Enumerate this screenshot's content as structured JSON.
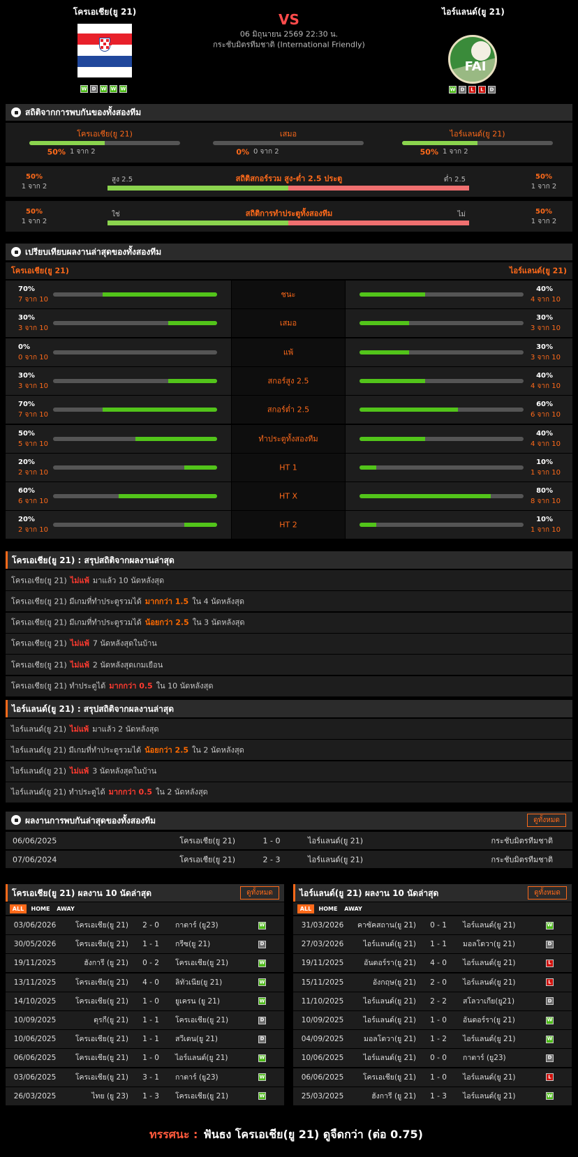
{
  "header": {
    "home": {
      "name": "โครเอเชีย(ยู 21)",
      "form": [
        "W",
        "D",
        "W",
        "W",
        "W"
      ]
    },
    "vs": "VS",
    "date": "06 มิถุนายน 2569 22:30 น.",
    "competition": "กระชับมิตรทีมชาติ (International Friendly)",
    "away": {
      "name": "ไอร์แลนด์(ยู 21)",
      "logo_text": "FAI",
      "form": [
        "W",
        "D",
        "L",
        "L",
        "D"
      ]
    }
  },
  "h2h_stats": {
    "title": "สถิติจากการพบกันของทั้งสองทีม",
    "results": [
      {
        "label": "โครเอเชีย(ยู 21)",
        "pct": {
          "value": 50,
          "label": "50%"
        },
        "count": "1 จาก 2"
      },
      {
        "label": "เสมอ",
        "pct": {
          "value": 0,
          "label": "0%"
        },
        "count": "0 จาก 2"
      },
      {
        "label": "ไอร์แลนด์(ยู 21)",
        "pct": {
          "value": 50,
          "label": "50%"
        },
        "count": "1 จาก 2"
      }
    ],
    "splits": [
      {
        "title": "สถิติสกอร์รวม สูง-ต่ำ 2.5 ประตู",
        "left_label": "สูง 2.5",
        "right_label": "ต่ำ 2.5",
        "left_pct": {
          "value": 50,
          "label": "50%"
        },
        "left_count": "1 จาก 2",
        "right_pct": {
          "value": 50,
          "label": "50%"
        },
        "right_count": "1 จาก 2"
      },
      {
        "title": "สถิติการทำประตูทั้งสองทีม",
        "left_label": "ใช่",
        "right_label": "ไม่",
        "left_pct": {
          "value": 50,
          "label": "50%"
        },
        "left_count": "1 จาก 2",
        "right_pct": {
          "value": 50,
          "label": "50%"
        },
        "right_count": "1 จาก 2"
      }
    ]
  },
  "form_compare": {
    "title": "เปรียบเทียบผลงานล่าสุดของทั้งสองทีม",
    "home_team": "โครเอเชีย(ยู 21)",
    "away_team": "ไอร์แลนด์(ยู 21)",
    "rows": [
      {
        "label": "ชนะ",
        "home_pct": {
          "value": 70,
          "label": "70%"
        },
        "home_count": "7 จาก 10",
        "away_pct": {
          "value": 40,
          "label": "40%"
        },
        "away_count": "4 จาก 10"
      },
      {
        "label": "เสมอ",
        "home_pct": {
          "value": 30,
          "label": "30%"
        },
        "home_count": "3 จาก 10",
        "away_pct": {
          "value": 30,
          "label": "30%"
        },
        "away_count": "3 จาก 10"
      },
      {
        "label": "แพ้",
        "home_pct": {
          "value": 0,
          "label": "0%"
        },
        "home_count": "0 จาก 10",
        "away_pct": {
          "value": 30,
          "label": "30%"
        },
        "away_count": "3 จาก 10"
      },
      {
        "label": "สกอร์สูง 2.5",
        "home_pct": {
          "value": 30,
          "label": "30%"
        },
        "home_count": "3 จาก 10",
        "away_pct": {
          "value": 40,
          "label": "40%"
        },
        "away_count": "4 จาก 10"
      },
      {
        "label": "สกอร์ต่ำ 2.5",
        "home_pct": {
          "value": 70,
          "label": "70%"
        },
        "home_count": "7 จาก 10",
        "away_pct": {
          "value": 60,
          "label": "60%"
        },
        "away_count": "6 จาก 10"
      },
      {
        "label": "ทำประตูทั้งสองทีม",
        "home_pct": {
          "value": 50,
          "label": "50%"
        },
        "home_count": "5 จาก 10",
        "away_pct": {
          "value": 40,
          "label": "40%"
        },
        "away_count": "4 จาก 10"
      },
      {
        "label": "HT 1",
        "home_pct": {
          "value": 20,
          "label": "20%"
        },
        "home_count": "2 จาก 10",
        "away_pct": {
          "value": 10,
          "label": "10%"
        },
        "away_count": "1 จาก 10"
      },
      {
        "label": "HT X",
        "home_pct": {
          "value": 60,
          "label": "60%"
        },
        "home_count": "6 จาก 10",
        "away_pct": {
          "value": 80,
          "label": "80%"
        },
        "away_count": "8 จาก 10"
      },
      {
        "label": "HT 2",
        "home_pct": {
          "value": 20,
          "label": "20%"
        },
        "home_count": "2 จาก 10",
        "away_pct": {
          "value": 10,
          "label": "10%"
        },
        "away_count": "1 จาก 10"
      }
    ]
  },
  "home_summary": {
    "title": "โครเอเชีย(ยู 21) : สรุปสถิติจากผลงานล่าสุด",
    "lines": [
      [
        {
          "text": "โครเอเชีย(ยู 21)"
        },
        {
          "text": "ไม่แพ้",
          "color": "#ff3b30"
        },
        {
          "text": "มาแล้ว 10 นัดหลังสุด"
        }
      ],
      [
        {
          "text": "โครเอเชีย(ยู 21) มีเกมที่ทำประตูรวมได้"
        },
        {
          "text": "มากกว่า 1.5",
          "color": "#ff6a00"
        },
        {
          "text": "ใน 4 นัดหลังสุด"
        }
      ],
      [
        {
          "text": "โครเอเชีย(ยู 21) มีเกมที่ทำประตูรวมได้"
        },
        {
          "text": "น้อยกว่า 2.5",
          "color": "#ff6a00"
        },
        {
          "text": "ใน 3 นัดหลังสุด"
        }
      ],
      [
        {
          "text": "โครเอเชีย(ยู 21)"
        },
        {
          "text": "ไม่แพ้",
          "color": "#ff3b30"
        },
        {
          "text": "7 นัดหลังสุดในบ้าน"
        }
      ],
      [
        {
          "text": "โครเอเชีย(ยู 21)"
        },
        {
          "text": "ไม่แพ้",
          "color": "#ff3b30"
        },
        {
          "text": "2 นัดหลังสุดเกมเยือน"
        }
      ],
      [
        {
          "text": "โครเอเชีย(ยู 21) ทำประตูได้"
        },
        {
          "text": "มากกว่า 0.5",
          "color": "#ff3b30"
        },
        {
          "text": "ใน 10 นัดหลังสุด"
        }
      ]
    ]
  },
  "away_summary": {
    "title": "ไอร์แลนด์(ยู 21) : สรุปสถิติจากผลงานล่าสุด",
    "lines": [
      [
        {
          "text": "ไอร์แลนด์(ยู 21)"
        },
        {
          "text": "ไม่แพ้",
          "color": "#ff3b30"
        },
        {
          "text": "มาแล้ว 2 นัดหลังสุด"
        }
      ],
      [
        {
          "text": "ไอร์แลนด์(ยู 21) มีเกมที่ทำประตูรวมได้"
        },
        {
          "text": "น้อยกว่า 2.5",
          "color": "#ff6a00"
        },
        {
          "text": "ใน 2 นัดหลังสุด"
        }
      ],
      [
        {
          "text": "ไอร์แลนด์(ยู 21)"
        },
        {
          "text": "ไม่แพ้",
          "color": "#ff3b30"
        },
        {
          "text": "3 นัดหลังสุดในบ้าน"
        }
      ],
      [
        {
          "text": "ไอร์แลนด์(ยู 21) ทำประตูได้"
        },
        {
          "text": "มากกว่า 0.5",
          "color": "#ff3b30"
        },
        {
          "text": "ใน 2 นัดหลังสุด"
        }
      ]
    ]
  },
  "h2h_results": {
    "title": "ผลงานการพบกันล่าสุดของทั้งสองทีม",
    "button": "ดูทั้งหมด",
    "rows": [
      {
        "date": "06/06/2025",
        "home": "โครเอเชีย(ยู 21)",
        "score": "1 - 0",
        "away": "ไอร์แลนด์(ยู 21)",
        "competition": "กระชับมิตรทีมชาติ"
      },
      {
        "date": "07/06/2024",
        "home": "โครเอเชีย(ยู 21)",
        "score": "2 - 3",
        "away": "ไอร์แลนด์(ยู 21)",
        "competition": "กระชับมิตรทีมชาติ"
      }
    ]
  },
  "recent": [
    {
      "title": "โครเอเชีย(ยู 21) ผลงาน 10 นัดล่าสุด",
      "button": "ดูทั้งหมด",
      "tabs": [
        "ALL",
        "HOME",
        "AWAY"
      ],
      "matches": [
        {
          "date": "03/06/2026",
          "home": "โครเอเชีย(ยู 21)",
          "score": "2 - 0",
          "away": "กาตาร์ (ยู23)",
          "result": "W"
        },
        {
          "date": "30/05/2026",
          "home": "โครเอเชีย(ยู 21)",
          "score": "1 - 1",
          "away": "กรีซ(ยู 21)",
          "result": "D"
        },
        {
          "date": "19/11/2025",
          "home": "ฮังการี (ยู 21)",
          "score": "0 - 2",
          "away": "โครเอเชีย(ยู 21)",
          "result": "W"
        },
        {
          "date": "13/11/2025",
          "home": "โครเอเชีย(ยู 21)",
          "score": "4 - 0",
          "away": "ลิทัวเนีย(ยู 21)",
          "result": "W"
        },
        {
          "date": "14/10/2025",
          "home": "โครเอเชีย(ยู 21)",
          "score": "1 - 0",
          "away": "ยูเครน (ยู 21)",
          "result": "W"
        },
        {
          "date": "10/09/2025",
          "home": "ตุรกี(ยู 21)",
          "score": "1 - 1",
          "away": "โครเอเชีย(ยู 21)",
          "result": "D"
        },
        {
          "date": "10/06/2025",
          "home": "โครเอเชีย(ยู 21)",
          "score": "1 - 1",
          "away": "สวีเดน(ยู 21)",
          "result": "D"
        },
        {
          "date": "06/06/2025",
          "home": "โครเอเชีย(ยู 21)",
          "score": "1 - 0",
          "away": "ไอร์แลนด์(ยู 21)",
          "result": "W"
        },
        {
          "date": "03/06/2025",
          "home": "โครเอเชีย(ยู 21)",
          "score": "3 - 1",
          "away": "กาตาร์ (ยู23)",
          "result": "W"
        },
        {
          "date": "26/03/2025",
          "home": "ไทย (ยู 23)",
          "score": "1 - 3",
          "away": "โครเอเชีย(ยู 21)",
          "result": "W"
        }
      ]
    },
    {
      "title": "ไอร์แลนด์(ยู 21) ผลงาน 10 นัดล่าสุด",
      "button": "ดูทั้งหมด",
      "tabs": [
        "ALL",
        "HOME",
        "AWAY"
      ],
      "matches": [
        {
          "date": "31/03/2026",
          "home": "คาซัคสถาน(ยู 21)",
          "score": "0 - 1",
          "away": "ไอร์แลนด์(ยู 21)",
          "result": "W"
        },
        {
          "date": "27/03/2026",
          "home": "ไอร์แลนด์(ยู 21)",
          "score": "1 - 1",
          "away": "มอลโดวา(ยู 21)",
          "result": "D"
        },
        {
          "date": "19/11/2025",
          "home": "อันดอร์รา(ยู 21)",
          "score": "4 - 0",
          "away": "ไอร์แลนด์(ยู 21)",
          "result": "L"
        },
        {
          "date": "15/11/2025",
          "home": "อังกฤษ(ยู 21)",
          "score": "2 - 0",
          "away": "ไอร์แลนด์(ยู 21)",
          "result": "L"
        },
        {
          "date": "11/10/2025",
          "home": "ไอร์แลนด์(ยู 21)",
          "score": "2 - 2",
          "away": "สโลวาเกีย(ยู21)",
          "result": "D"
        },
        {
          "date": "10/09/2025",
          "home": "ไอร์แลนด์(ยู 21)",
          "score": "1 - 0",
          "away": "อันดอร์รา(ยู 21)",
          "result": "W"
        },
        {
          "date": "04/09/2025",
          "home": "มอลโดวา(ยู 21)",
          "score": "1 - 2",
          "away": "ไอร์แลนด์(ยู 21)",
          "result": "W"
        },
        {
          "date": "10/06/2025",
          "home": "ไอร์แลนด์(ยู 21)",
          "score": "0 - 0",
          "away": "กาตาร์ (ยู23)",
          "result": "D"
        },
        {
          "date": "06/06/2025",
          "home": "โครเอเชีย(ยู 21)",
          "score": "1 - 0",
          "away": "ไอร์แลนด์(ยู 21)",
          "result": "L"
        },
        {
          "date": "25/03/2025",
          "home": "ฮังการี (ยู 21)",
          "score": "1 - 3",
          "away": "ไอร์แลนด์(ยู 21)",
          "result": "W"
        }
      ]
    }
  ],
  "verdict": {
    "label": "ทรรศนะ :",
    "text": "ฟันธง โครเอเชีย(ยู 21) ดูจืดกว่า (ต่อ 0.75)"
  }
}
